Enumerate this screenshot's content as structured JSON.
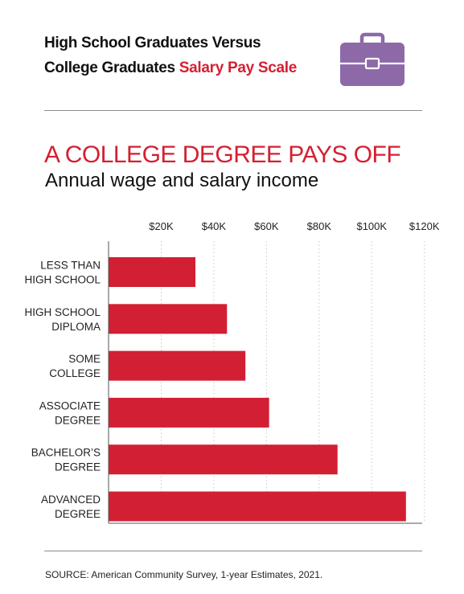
{
  "header": {
    "title_line1": "High School Graduates Versus",
    "title_line2_plain": "College Graduates ",
    "title_line2_accent": "Salary Pay Scale",
    "icon": "briefcase-icon"
  },
  "headline": "A COLLEGE DEGREE PAYS OFF",
  "subheadline": "Annual wage and salary income",
  "source": "SOURCE: American Community Survey, 1-year Estimates, 2021.",
  "colors": {
    "accent": "#d42032",
    "icon": "#8e69a8",
    "bar": "#d21f33"
  },
  "chart_data": {
    "type": "bar",
    "orientation": "horizontal",
    "categories": [
      [
        "LESS THAN",
        "HIGH SCHOOL"
      ],
      [
        "HIGH SCHOOL",
        "DIPLOMA"
      ],
      [
        "SOME",
        "COLLEGE"
      ],
      [
        "ASSOCIATE",
        "DEGREE"
      ],
      [
        "BACHELOR’S",
        "DEGREE"
      ],
      [
        "ADVANCED",
        "DEGREE"
      ]
    ],
    "values": [
      33000,
      45000,
      52000,
      61000,
      87000,
      113000
    ],
    "xticks": [
      20000,
      40000,
      60000,
      80000,
      100000,
      120000
    ],
    "xtick_labels": [
      "$20K",
      "$40K",
      "$60K",
      "$80K",
      "$100K",
      "$120K"
    ],
    "xlim": [
      0,
      120000
    ],
    "xaxis_position": "top",
    "grid": "vertical dotted"
  }
}
